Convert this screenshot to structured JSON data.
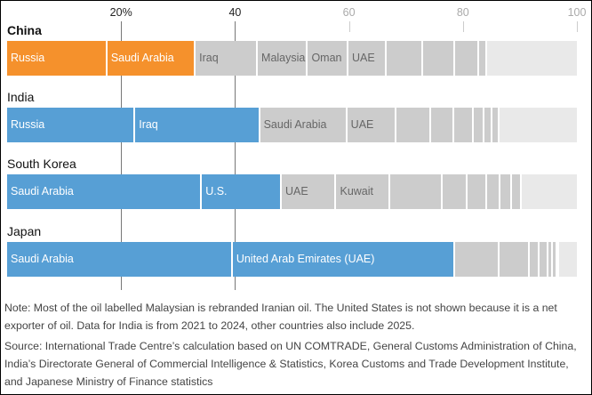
{
  "chart_data": {
    "type": "bar",
    "orientation": "horizontal-stacked",
    "xlim": [
      0,
      100
    ],
    "ticks": [
      {
        "value": 20,
        "label": "20%",
        "emphasis": true
      },
      {
        "value": 40,
        "label": "40",
        "emphasis": true
      },
      {
        "value": 60,
        "label": "60",
        "emphasis": false
      },
      {
        "value": 80,
        "label": "80",
        "emphasis": false
      },
      {
        "value": 100,
        "label": "100",
        "emphasis": false
      }
    ],
    "colors": {
      "china": "#f5912c",
      "other_highlight": "#579fd5",
      "gray": "#cccccc",
      "remainder": "#e9e9e9",
      "label_light": "#ffffff",
      "label_dark": "#666666"
    },
    "series": [
      {
        "name": "China",
        "highlight": "china",
        "segments": [
          {
            "label": "Russia",
            "value": 17.6,
            "hl": true
          },
          {
            "label": "Saudi Arabia",
            "value": 15.5,
            "hl": true
          },
          {
            "label": "Iraq",
            "value": 10.9
          },
          {
            "label": "Malaysia",
            "value": 8.8
          },
          {
            "label": "Oman",
            "value": 7.1
          },
          {
            "label": "UAE",
            "value": 6.7
          },
          {
            "label": "",
            "value": 6.4
          },
          {
            "label": "",
            "value": 5.6
          },
          {
            "label": "",
            "value": 4.3
          },
          {
            "label": "",
            "value": 1.4
          },
          {
            "label": "",
            "value": 15.7,
            "rest": true
          }
        ]
      },
      {
        "name": "India",
        "highlight": "other_highlight",
        "segments": [
          {
            "label": "Russia",
            "value": 22.5,
            "hl": true
          },
          {
            "label": "Iraq",
            "value": 21.9,
            "hl": true
          },
          {
            "label": "Saudi Arabia",
            "value": 15.3
          },
          {
            "label": "UAE",
            "value": 8.6
          },
          {
            "label": "",
            "value": 6.1
          },
          {
            "label": "",
            "value": 4.0
          },
          {
            "label": "",
            "value": 3.5
          },
          {
            "label": "",
            "value": 1.9
          },
          {
            "label": "",
            "value": 1.4
          },
          {
            "label": "",
            "value": 1.3
          },
          {
            "label": "",
            "value": 13.5,
            "rest": true
          }
        ]
      },
      {
        "name": "South Korea",
        "highlight": "other_highlight",
        "segments": [
          {
            "label": "Saudi Arabia",
            "value": 34.2,
            "hl": true
          },
          {
            "label": "U.S.",
            "value": 14.0,
            "hl": true
          },
          {
            "label": "UAE",
            "value": 9.6
          },
          {
            "label": "Kuwait",
            "value": 9.4
          },
          {
            "label": "",
            "value": 9.2
          },
          {
            "label": "",
            "value": 4.4
          },
          {
            "label": "",
            "value": 3.4
          },
          {
            "label": "",
            "value": 2.4
          },
          {
            "label": "",
            "value": 2.0
          },
          {
            "label": "",
            "value": 1.7
          },
          {
            "label": "",
            "value": 9.7,
            "rest": true
          }
        ]
      },
      {
        "name": "Japan",
        "highlight": "other_highlight",
        "segments": [
          {
            "label": "Saudi Arabia",
            "value": 39.6,
            "hl": true
          },
          {
            "label": "United Arab Emirates (UAE)",
            "value": 39.1,
            "hl": true
          },
          {
            "label": "",
            "value": 7.8
          },
          {
            "label": "",
            "value": 5.2
          },
          {
            "label": "",
            "value": 1.7
          },
          {
            "label": "",
            "value": 1.6
          },
          {
            "label": "",
            "value": 0.8
          },
          {
            "label": "",
            "value": 0.8
          },
          {
            "label": "",
            "value": 0.3
          },
          {
            "label": "",
            "value": 3.1,
            "rest": true
          }
        ]
      }
    ]
  },
  "notes": {
    "note": "Note: Most of the oil labelled Malaysian is rebranded Iranian oil. The United States is not shown because it is a net exporter of oil. Data for India is from 2021 to 2024, other countries also include 2025.",
    "source": "Source: International Trade Centre’s calculation based on UN COMTRADE, General Customs Administration of China, India’s Directorate General of Commercial Intelligence & Statistics, Korea Customs and Trade Development Institute, and Japanese Ministry of Finance statistics"
  }
}
